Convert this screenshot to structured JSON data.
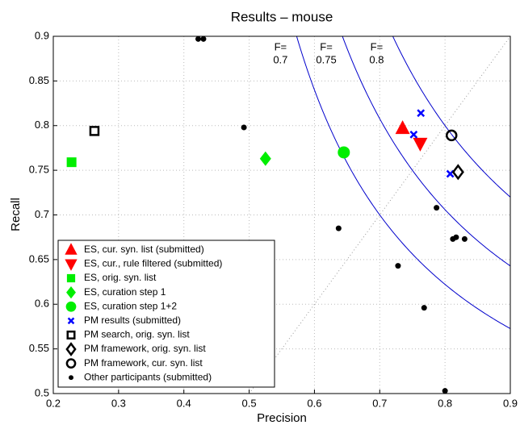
{
  "chart_data": {
    "type": "scatter",
    "title": "Results – mouse",
    "x_label": "Precision",
    "y_label": "Recall",
    "xlim": [
      0.2,
      0.9
    ],
    "ylim": [
      0.5,
      0.9
    ],
    "xticks": [
      0.2,
      0.3,
      0.4,
      0.5,
      0.6,
      0.7,
      0.8,
      0.9
    ],
    "yticks": [
      0.5,
      0.55,
      0.6,
      0.65,
      0.7,
      0.75,
      0.8,
      0.85,
      0.9
    ],
    "grid": true,
    "legend": "lower left",
    "f_prefix": "F=",
    "f_curves": [
      0.7,
      0.75,
      0.8
    ],
    "f_curve_color": "#0000cc",
    "series": [
      {
        "name": "ES, cur. syn. list (submitted)",
        "color": "#ff0000",
        "marker": "triangle-up",
        "x": [
          0.735
        ],
        "values": [
          0.797
        ]
      },
      {
        "name": "ES, cur., rule filtered (submitted)",
        "color": "#ff0000",
        "marker": "triangle-down",
        "x": [
          0.762
        ],
        "values": [
          0.78
        ]
      },
      {
        "name": "ES, orig. syn. list",
        "color": "#00ee00",
        "marker": "square",
        "x": [
          0.228
        ],
        "values": [
          0.759
        ]
      },
      {
        "name": "ES, curation step 1",
        "color": "#00ee00",
        "marker": "diamond",
        "x": [
          0.525
        ],
        "values": [
          0.763
        ]
      },
      {
        "name": "ES, curation step 1+2",
        "color": "#00ee00",
        "marker": "circle",
        "x": [
          0.645
        ],
        "values": [
          0.77
        ]
      },
      {
        "name": "PM results (submitted)",
        "color": "#0000ff",
        "marker": "x",
        "x": [
          0.763,
          0.752,
          0.808
        ],
        "values": [
          0.814,
          0.79,
          0.746
        ]
      },
      {
        "name": "PM search, orig. syn. list",
        "color": "#000000",
        "marker": "open-square",
        "x": [
          0.263
        ],
        "values": [
          0.794
        ]
      },
      {
        "name": "PM framework, orig. syn. list",
        "color": "#000000",
        "marker": "open-diamond",
        "x": [
          0.82
        ],
        "values": [
          0.748
        ]
      },
      {
        "name": "PM framework, cur. syn. list",
        "color": "#000000",
        "marker": "open-circle",
        "x": [
          0.81
        ],
        "values": [
          0.789
        ]
      },
      {
        "name": "Other participants (submitted)",
        "color": "#000000",
        "marker": "dot",
        "x": [
          0.422,
          0.43,
          0.492,
          0.637,
          0.728,
          0.768,
          0.787,
          0.812,
          0.817,
          0.83,
          0.8
        ],
        "values": [
          0.897,
          0.897,
          0.798,
          0.685,
          0.643,
          0.596,
          0.708,
          0.673,
          0.675,
          0.673,
          0.503
        ]
      }
    ]
  }
}
